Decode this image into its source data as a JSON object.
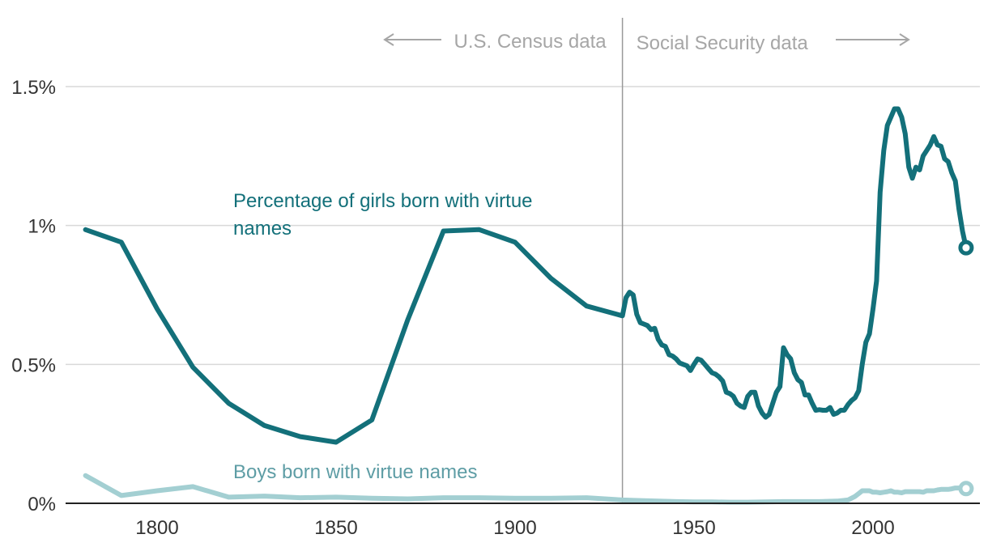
{
  "chart_data": {
    "type": "line",
    "title": "",
    "xlabel": "",
    "ylabel": "",
    "xlim": [
      1776,
      2030
    ],
    "ylim": [
      0,
      1.5
    ],
    "x_ticks": [
      1800,
      1850,
      1900,
      1950,
      2000
    ],
    "x_tick_labels": [
      "1800",
      "1850",
      "1900",
      "1950",
      "2000"
    ],
    "y_ticks": [
      0,
      0.5,
      1,
      1.5
    ],
    "y_tick_labels": [
      "0%",
      "0.5%",
      "1%",
      "1.5%"
    ],
    "grid": "horizontal",
    "divider_year": 1930,
    "source_labels": {
      "left": "U.S. Census data",
      "right": "Social Security data"
    },
    "series": [
      {
        "name": "Percentage of girls born with virtue names",
        "color": "#13707a",
        "values": [
          [
            1780,
            0.985
          ],
          [
            1790,
            0.94
          ],
          [
            1800,
            0.7
          ],
          [
            1810,
            0.49
          ],
          [
            1820,
            0.36
          ],
          [
            1830,
            0.28
          ],
          [
            1840,
            0.24
          ],
          [
            1850,
            0.22
          ],
          [
            1860,
            0.3
          ],
          [
            1870,
            0.66
          ],
          [
            1880,
            0.98
          ],
          [
            1890,
            0.985
          ],
          [
            1900,
            0.94
          ],
          [
            1910,
            0.81
          ],
          [
            1920,
            0.71
          ],
          [
            1930,
            0.675
          ],
          [
            1931,
            0.74
          ],
          [
            1932,
            0.76
          ],
          [
            1933,
            0.75
          ],
          [
            1934,
            0.68
          ],
          [
            1935,
            0.65
          ],
          [
            1936,
            0.645
          ],
          [
            1937,
            0.64
          ],
          [
            1938,
            0.625
          ],
          [
            1939,
            0.63
          ],
          [
            1940,
            0.59
          ],
          [
            1941,
            0.57
          ],
          [
            1942,
            0.565
          ],
          [
            1943,
            0.535
          ],
          [
            1944,
            0.53
          ],
          [
            1945,
            0.52
          ],
          [
            1946,
            0.505
          ],
          [
            1947,
            0.5
          ],
          [
            1948,
            0.495
          ],
          [
            1949,
            0.478
          ],
          [
            1950,
            0.5
          ],
          [
            1951,
            0.52
          ],
          [
            1952,
            0.515
          ],
          [
            1953,
            0.5
          ],
          [
            1954,
            0.485
          ],
          [
            1955,
            0.47
          ],
          [
            1956,
            0.465
          ],
          [
            1957,
            0.455
          ],
          [
            1958,
            0.44
          ],
          [
            1959,
            0.4
          ],
          [
            1960,
            0.395
          ],
          [
            1961,
            0.385
          ],
          [
            1962,
            0.36
          ],
          [
            1963,
            0.35
          ],
          [
            1964,
            0.345
          ],
          [
            1965,
            0.385
          ],
          [
            1966,
            0.4
          ],
          [
            1967,
            0.4
          ],
          [
            1968,
            0.35
          ],
          [
            1969,
            0.325
          ],
          [
            1970,
            0.31
          ],
          [
            1971,
            0.32
          ],
          [
            1972,
            0.36
          ],
          [
            1973,
            0.4
          ],
          [
            1974,
            0.42
          ],
          [
            1975,
            0.56
          ],
          [
            1976,
            0.535
          ],
          [
            1977,
            0.52
          ],
          [
            1978,
            0.47
          ],
          [
            1979,
            0.445
          ],
          [
            1980,
            0.435
          ],
          [
            1981,
            0.39
          ],
          [
            1982,
            0.39
          ],
          [
            1983,
            0.36
          ],
          [
            1984,
            0.335
          ],
          [
            1985,
            0.337
          ],
          [
            1986,
            0.335
          ],
          [
            1987,
            0.335
          ],
          [
            1988,
            0.345
          ],
          [
            1989,
            0.32
          ],
          [
            1990,
            0.325
          ],
          [
            1991,
            0.335
          ],
          [
            1992,
            0.335
          ],
          [
            1993,
            0.355
          ],
          [
            1994,
            0.37
          ],
          [
            1995,
            0.38
          ],
          [
            1996,
            0.405
          ],
          [
            1997,
            0.5
          ],
          [
            1998,
            0.58
          ],
          [
            1999,
            0.61
          ],
          [
            2000,
            0.7
          ],
          [
            2001,
            0.8
          ],
          [
            2002,
            1.12
          ],
          [
            2003,
            1.27
          ],
          [
            2004,
            1.36
          ],
          [
            2005,
            1.39
          ],
          [
            2006,
            1.42
          ],
          [
            2007,
            1.42
          ],
          [
            2008,
            1.39
          ],
          [
            2009,
            1.33
          ],
          [
            2010,
            1.21
          ],
          [
            2011,
            1.17
          ],
          [
            2012,
            1.21
          ],
          [
            2013,
            1.2
          ],
          [
            2014,
            1.25
          ],
          [
            2015,
            1.27
          ],
          [
            2016,
            1.29
          ],
          [
            2017,
            1.32
          ],
          [
            2018,
            1.29
          ],
          [
            2019,
            1.285
          ],
          [
            2020,
            1.24
          ],
          [
            2021,
            1.23
          ],
          [
            2022,
            1.19
          ],
          [
            2023,
            1.16
          ],
          [
            2024,
            1.06
          ],
          [
            2025,
            0.98
          ],
          [
            2026,
            0.92
          ]
        ]
      },
      {
        "name": "Boys born with virtue names",
        "color": "#a3cfd2",
        "values": [
          [
            1780,
            0.1
          ],
          [
            1790,
            0.028
          ],
          [
            1800,
            0.045
          ],
          [
            1810,
            0.06
          ],
          [
            1820,
            0.022
          ],
          [
            1830,
            0.026
          ],
          [
            1840,
            0.02
          ],
          [
            1850,
            0.022
          ],
          [
            1860,
            0.018
          ],
          [
            1870,
            0.016
          ],
          [
            1880,
            0.02
          ],
          [
            1890,
            0.02
          ],
          [
            1900,
            0.018
          ],
          [
            1910,
            0.018
          ],
          [
            1920,
            0.02
          ],
          [
            1930,
            0.012
          ],
          [
            1935,
            0.01
          ],
          [
            1940,
            0.008
          ],
          [
            1945,
            0.006
          ],
          [
            1950,
            0.005
          ],
          [
            1955,
            0.005
          ],
          [
            1960,
            0.004
          ],
          [
            1965,
            0.004
          ],
          [
            1970,
            0.005
          ],
          [
            1975,
            0.006
          ],
          [
            1980,
            0.006
          ],
          [
            1985,
            0.006
          ],
          [
            1990,
            0.008
          ],
          [
            1993,
            0.012
          ],
          [
            1995,
            0.025
          ],
          [
            1996,
            0.035
          ],
          [
            1997,
            0.045
          ],
          [
            1998,
            0.045
          ],
          [
            1999,
            0.045
          ],
          [
            2000,
            0.04
          ],
          [
            2001,
            0.04
          ],
          [
            2002,
            0.038
          ],
          [
            2003,
            0.04
          ],
          [
            2004,
            0.042
          ],
          [
            2005,
            0.045
          ],
          [
            2006,
            0.04
          ],
          [
            2007,
            0.04
          ],
          [
            2008,
            0.038
          ],
          [
            2009,
            0.042
          ],
          [
            2010,
            0.042
          ],
          [
            2011,
            0.042
          ],
          [
            2012,
            0.042
          ],
          [
            2013,
            0.042
          ],
          [
            2014,
            0.04
          ],
          [
            2015,
            0.045
          ],
          [
            2016,
            0.045
          ],
          [
            2017,
            0.045
          ],
          [
            2018,
            0.048
          ],
          [
            2019,
            0.05
          ],
          [
            2020,
            0.05
          ],
          [
            2021,
            0.05
          ],
          [
            2022,
            0.052
          ],
          [
            2023,
            0.055
          ],
          [
            2024,
            0.055
          ],
          [
            2025,
            0.055
          ],
          [
            2026,
            0.053
          ]
        ]
      }
    ]
  }
}
